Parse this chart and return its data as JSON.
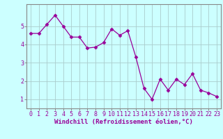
{
  "x": [
    0,
    1,
    2,
    3,
    4,
    5,
    6,
    7,
    8,
    9,
    10,
    11,
    12,
    13,
    14,
    15,
    16,
    17,
    18,
    19,
    20,
    21,
    22,
    23
  ],
  "y": [
    4.6,
    4.6,
    5.1,
    5.6,
    5.0,
    4.4,
    4.4,
    3.8,
    3.85,
    4.1,
    4.85,
    4.5,
    4.75,
    3.3,
    1.6,
    1.0,
    2.1,
    1.5,
    2.1,
    1.8,
    2.4,
    1.5,
    1.35,
    1.15
  ],
  "line_color": "#990099",
  "marker": "D",
  "marker_size": 2.5,
  "linewidth": 0.9,
  "background_color": "#ccffff",
  "grid_color": "#aacccc",
  "xlabel": "Windchill (Refroidissement éolien,°C)",
  "xlabel_fontsize": 6.5,
  "ylabel_ticks": [
    1,
    2,
    3,
    4,
    5
  ],
  "xlim": [
    -0.5,
    23.5
  ],
  "ylim": [
    0.5,
    6.2
  ],
  "tick_fontsize": 6,
  "title": ""
}
